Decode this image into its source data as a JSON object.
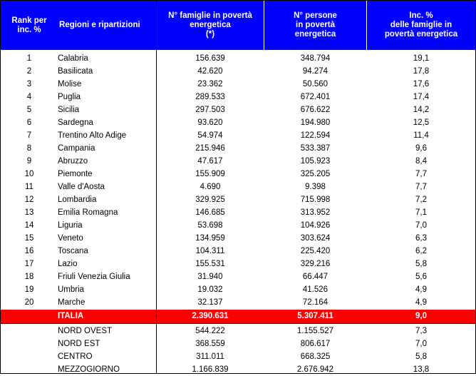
{
  "header": {
    "rank": "Rank per\ninc. %",
    "region": "Regioni e ripartizioni",
    "families": "N° famiglie in povertà\nenergetica\n(*)",
    "persons": "N° persone\nin povertà\nenergetica",
    "incidence": "Inc. %\ndelle famiglie in\npovertà energetica"
  },
  "rows": [
    {
      "rank": "1",
      "region": "Calabria",
      "families": "156.639",
      "persons": "348.794",
      "incidence": "19,1"
    },
    {
      "rank": "2",
      "region": "Basilicata",
      "families": "42.620",
      "persons": "94.274",
      "incidence": "17,8"
    },
    {
      "rank": "3",
      "region": "Molise",
      "families": "23.362",
      "persons": "50.560",
      "incidence": "17,6"
    },
    {
      "rank": "4",
      "region": "Puglia",
      "families": "289.533",
      "persons": "672.401",
      "incidence": "17,4"
    },
    {
      "rank": "5",
      "region": "Sicilia",
      "families": "297.503",
      "persons": "676.622",
      "incidence": "14,2"
    },
    {
      "rank": "6",
      "region": "Sardegna",
      "families": "93.620",
      "persons": "194.980",
      "incidence": "12,5"
    },
    {
      "rank": "7",
      "region": "Trentino Alto Adige",
      "families": "54.974",
      "persons": "122.594",
      "incidence": "11,4"
    },
    {
      "rank": "8",
      "region": "Campania",
      "families": "215.946",
      "persons": "533.387",
      "incidence": "9,6"
    },
    {
      "rank": "9",
      "region": "Abruzzo",
      "families": "47.617",
      "persons": "105.923",
      "incidence": "8,4"
    },
    {
      "rank": "10",
      "region": "Piemonte",
      "families": "155.909",
      "persons": "325.205",
      "incidence": "7,7"
    },
    {
      "rank": "11",
      "region": "Valle d'Aosta",
      "families": "4.690",
      "persons": "9.398",
      "incidence": "7,7"
    },
    {
      "rank": "12",
      "region": "Lombardia",
      "families": "329.925",
      "persons": "715.998",
      "incidence": "7,2"
    },
    {
      "rank": "13",
      "region": "Emilia Romagna",
      "families": "146.685",
      "persons": "313.952",
      "incidence": "7,1"
    },
    {
      "rank": "14",
      "region": "Liguria",
      "families": "53.698",
      "persons": "104.926",
      "incidence": "7,0"
    },
    {
      "rank": "15",
      "region": "Veneto",
      "families": "134.959",
      "persons": "303.624",
      "incidence": "6,3"
    },
    {
      "rank": "16",
      "region": "Toscana",
      "families": "104.311",
      "persons": "225.420",
      "incidence": "6,2"
    },
    {
      "rank": "17",
      "region": "Lazio",
      "families": "155.531",
      "persons": "329.216",
      "incidence": "5,8"
    },
    {
      "rank": "18",
      "region": "Friuli Venezia Giulia",
      "families": "31.940",
      "persons": "66.447",
      "incidence": "5,6"
    },
    {
      "rank": "19",
      "region": "Umbria",
      "families": "19.032",
      "persons": "41.526",
      "incidence": "4,9"
    },
    {
      "rank": "20",
      "region": "Marche",
      "families": "32.137",
      "persons": "72.164",
      "incidence": "4,9"
    }
  ],
  "total": {
    "region": "ITALIA",
    "families": "2.390.631",
    "persons": "5.307.411",
    "incidence": "9,0"
  },
  "areas": [
    {
      "region": "NORD OVEST",
      "families": "544.222",
      "persons": "1.155.527",
      "incidence": "7,3"
    },
    {
      "region": "NORD EST",
      "families": "368.559",
      "persons": "806.617",
      "incidence": "7,0"
    },
    {
      "region": "CENTRO",
      "families": "311.011",
      "persons": "668.325",
      "incidence": "5,8"
    },
    {
      "region": "MEZZOGIORNO",
      "families": "1.166.839",
      "persons": "2.676.942",
      "incidence": "13,8"
    }
  ],
  "colors": {
    "header_bg": "#0000ff",
    "header_text": "#ffffff",
    "total_bg": "#ff0000",
    "total_text": "#ffffff"
  }
}
